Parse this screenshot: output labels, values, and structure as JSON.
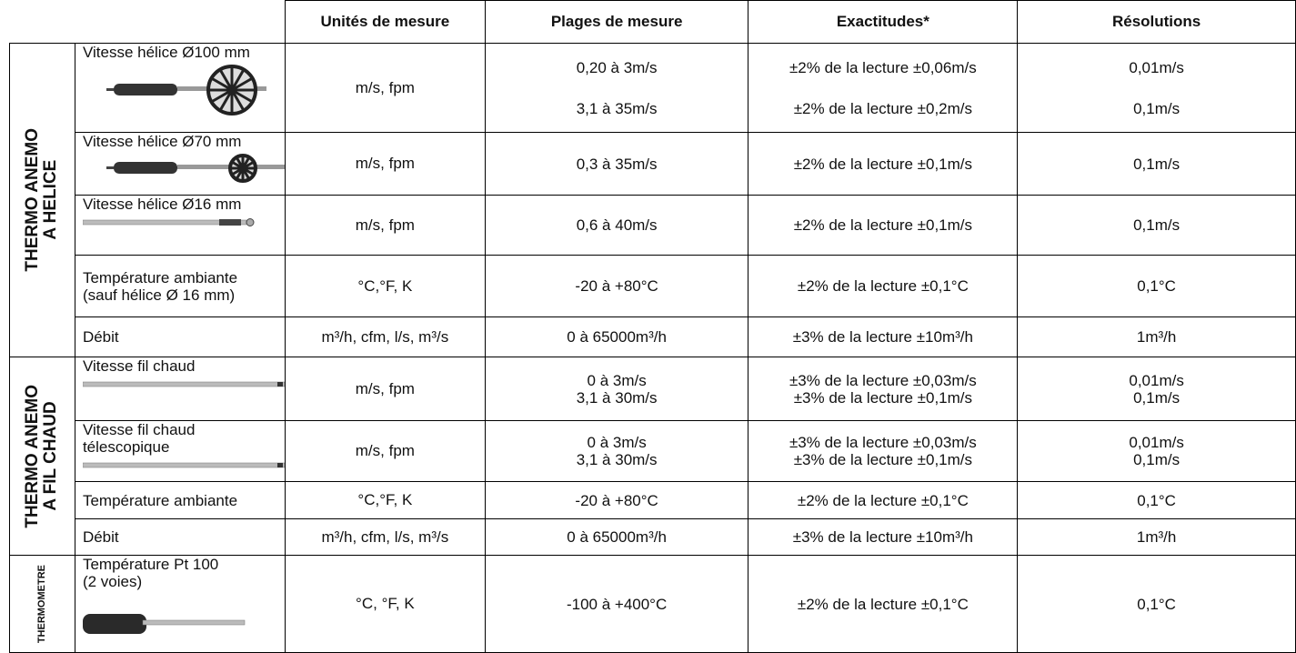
{
  "header": [
    "Unités de mesure",
    "Plages de mesure",
    "Exactitudes*",
    "Résolutions"
  ],
  "groups": [
    {
      "label": [
        "THERMO ANEMO",
        "A HELICE"
      ],
      "rows": [
        {
          "label": [
            "Vitesse hélice Ø100 mm"
          ],
          "units": "m/s, fpm",
          "ranges": [
            "0,20 à 3m/s",
            "3,1 à 35m/s"
          ],
          "accuracies": [
            "±2% de la lecture ±0,06m/s",
            "±2% de la lecture ±0,2m/s"
          ],
          "resolutions": [
            "0,01m/s",
            "0,1m/s"
          ]
        },
        {
          "label": [
            "Vitesse hélice Ø70 mm"
          ],
          "units": "m/s, fpm",
          "ranges": [
            "0,3 à 35m/s"
          ],
          "accuracies": [
            "±2% de la lecture ±0,1m/s"
          ],
          "resolutions": [
            "0,1m/s"
          ]
        },
        {
          "label": [
            "Vitesse hélice Ø16 mm"
          ],
          "units": "m/s, fpm",
          "ranges": [
            "0,6 à 40m/s"
          ],
          "accuracies": [
            "±2% de la lecture ±0,1m/s"
          ],
          "resolutions": [
            "0,1m/s"
          ]
        },
        {
          "label": [
            "Température ambiante",
            "(sauf hélice Ø 16 mm)"
          ],
          "units": "°C,°F, K",
          "ranges": [
            "-20 à +80°C"
          ],
          "accuracies": [
            "±2% de la lecture ±0,1°C"
          ],
          "resolutions": [
            "0,1°C"
          ]
        },
        {
          "label": [
            "Débit"
          ],
          "units": "m³/h, cfm, l/s, m³/s",
          "ranges": [
            "0 à 65000m³/h"
          ],
          "accuracies": [
            "±3% de la lecture ±10m³/h"
          ],
          "resolutions": [
            "1m³/h"
          ]
        }
      ]
    },
    {
      "label": [
        "THERMO ANEMO",
        "A FIL CHAUD"
      ],
      "rows": [
        {
          "label": [
            "Vitesse fil chaud"
          ],
          "units": "m/s, fpm",
          "ranges": [
            "0 à 3m/s",
            "3,1 à 30m/s"
          ],
          "accuracies": [
            "±3% de la lecture ±0,03m/s",
            "±3% de la lecture ±0,1m/s"
          ],
          "resolutions": [
            "0,01m/s",
            "0,1m/s"
          ]
        },
        {
          "label": [
            "Vitesse fil chaud",
            "télescopique"
          ],
          "units": "m/s, fpm",
          "ranges": [
            "0 à 3m/s",
            "3,1 à 30m/s"
          ],
          "accuracies": [
            "±3% de la lecture ±0,03m/s",
            "±3% de la lecture ±0,1m/s"
          ],
          "resolutions": [
            "0,01m/s",
            "0,1m/s"
          ]
        },
        {
          "label": [
            "Température ambiante"
          ],
          "units": "°C,°F, K",
          "ranges": [
            "-20 à +80°C"
          ],
          "accuracies": [
            "±2% de la lecture ±0,1°C"
          ],
          "resolutions": [
            "0,1°C"
          ]
        },
        {
          "label": [
            "Débit"
          ],
          "units": "m³/h, cfm, l/s, m³/s",
          "ranges": [
            "0 à 65000m³/h"
          ],
          "accuracies": [
            "±3% de la lecture ±10m³/h"
          ],
          "resolutions": [
            "1m³/h"
          ]
        }
      ]
    },
    {
      "label": [
        "THERMOMETRE"
      ],
      "rows": [
        {
          "label": [
            "Température Pt 100",
            "(2 voies)"
          ],
          "units": "°C, °F, K",
          "ranges": [
            "-100 à +400°C"
          ],
          "accuracies": [
            "±2% de la lecture ±0,1°C"
          ],
          "resolutions": [
            "0,1°C"
          ]
        }
      ]
    }
  ]
}
